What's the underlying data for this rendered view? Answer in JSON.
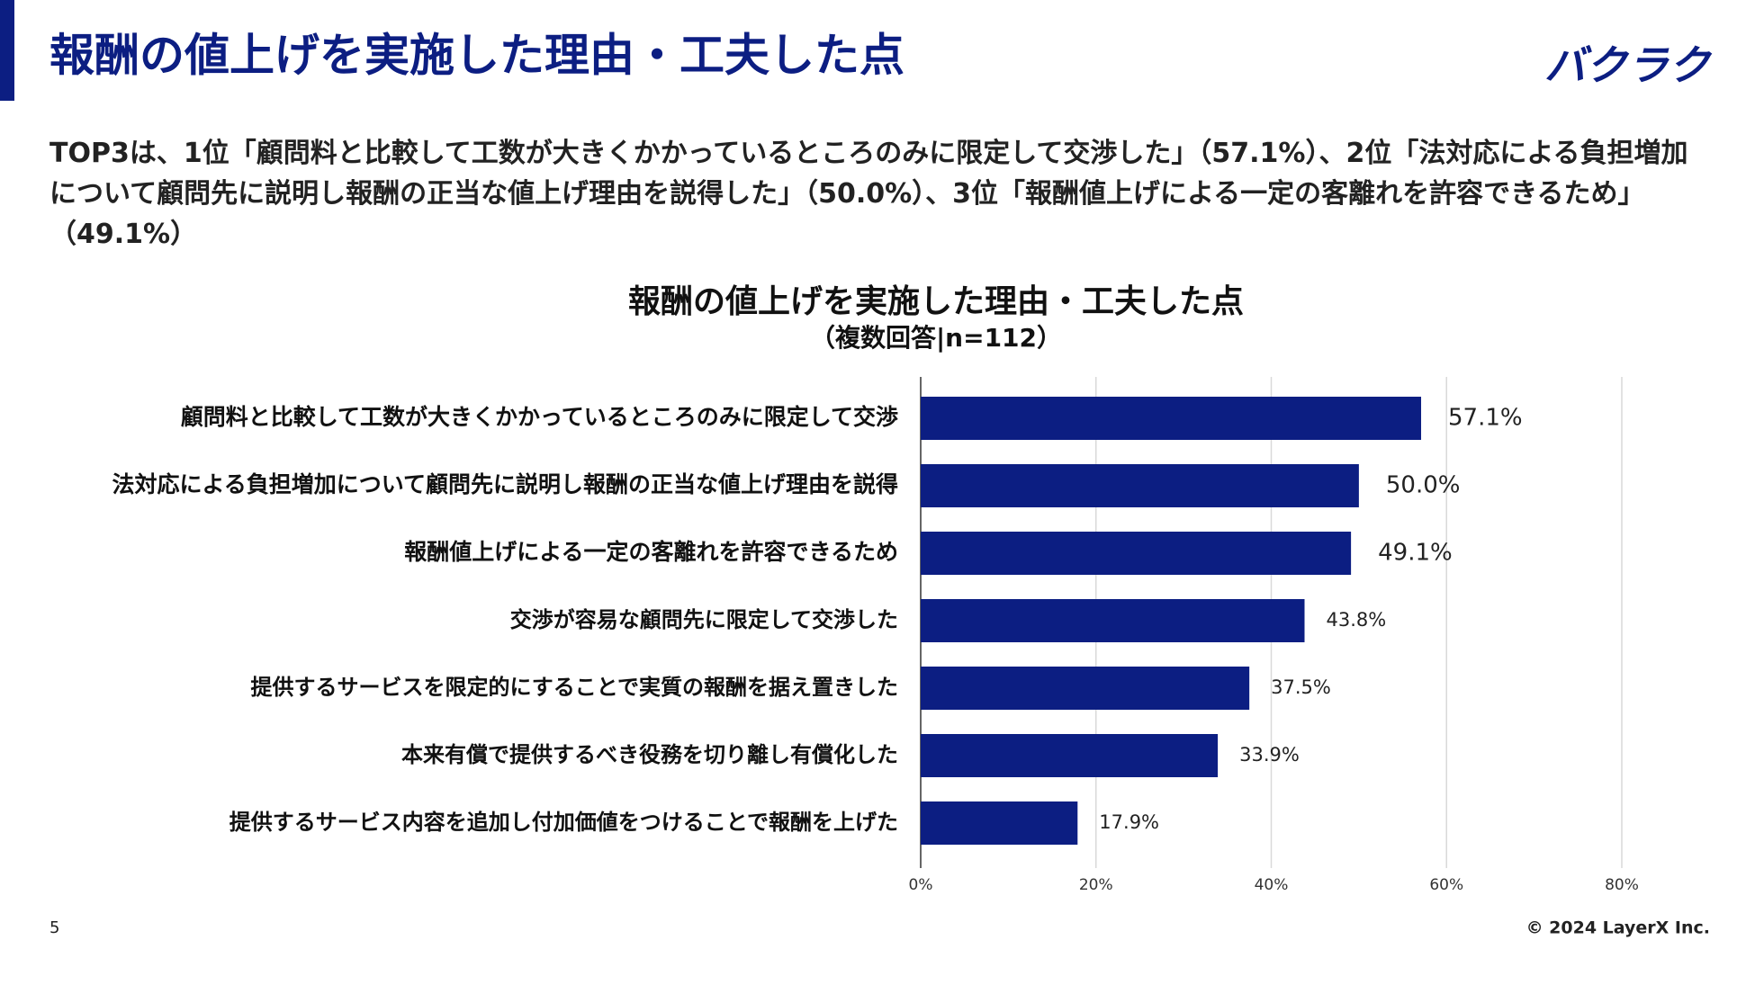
{
  "header": {
    "title": "報酬の値上げを実施した理由・工夫した点",
    "logo": "バクラク"
  },
  "summary": "TOP3は、1位「顧問料と比較して工数が大きくかかっているところのみに限定して交渉した」（57.1%）、2位「法対応による負担増加について顧問先に説明し報酬の正当な値上げ理由を説得した」（50.0%）、3位「報酬値上げによる一定の客離れを許容できるため」（49.1%）",
  "footer": {
    "page": "5",
    "copyright": "© 2024 LayerX Inc."
  },
  "chart_data": {
    "type": "barh",
    "title": "報酬の値上げを実施した理由・工夫した点",
    "subtitle": "（複数回答|n=112）",
    "categories": [
      "顧問料と比較して工数が大きくかかっているところのみに限定して交渉",
      "法対応による負担増加について顧問先に説明し報酬の正当な値上げ理由を説得",
      "報酬値上げによる一定の客離れを許容できるため",
      "交渉が容易な顧問先に限定して交渉した",
      "提供するサービスを限定的にすることで実質の報酬を据え置きした",
      "本来有償で提供するべき役務を切り離し有償化した",
      "提供するサービス内容を追加し付加価値をつけることで報酬を上げた"
    ],
    "values": [
      57.1,
      50.0,
      49.1,
      43.8,
      37.5,
      33.9,
      17.9
    ],
    "value_labels": [
      "57.1%",
      "50.0%",
      "49.1%",
      "43.8%",
      "37.5%",
      "33.9%",
      "17.9%"
    ],
    "color": "#0c1e82",
    "xlim": [
      0,
      80
    ],
    "xticks": [
      {
        "value": 0,
        "label": "0%"
      },
      {
        "value": 20,
        "label": "20%"
      },
      {
        "value": 40,
        "label": "40%"
      },
      {
        "value": 60,
        "label": "60%"
      },
      {
        "value": 80,
        "label": "80%"
      }
    ],
    "grid": true
  }
}
